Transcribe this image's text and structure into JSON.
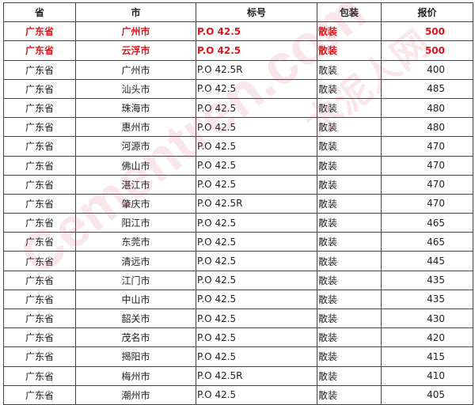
{
  "table": {
    "headers": [
      "省",
      "市",
      "标号",
      "包装",
      "报价"
    ],
    "rows": [
      {
        "cells": [
          "广东省",
          "广州市",
          "P.O 42.5",
          "散装",
          "500"
        ],
        "highlight": true
      },
      {
        "cells": [
          "广东省",
          "云浮市",
          "P.O 42.5",
          "散装",
          "500"
        ],
        "highlight": true
      },
      {
        "cells": [
          "广东省",
          "广州市",
          "P.O 42.5R",
          "散装",
          "400"
        ]
      },
      {
        "cells": [
          "广东省",
          "汕头市",
          "P.O 42.5",
          "散装",
          "485"
        ]
      },
      {
        "cells": [
          "广东省",
          "珠海市",
          "P.O 42.5",
          "散装",
          "480"
        ]
      },
      {
        "cells": [
          "广东省",
          "惠州市",
          "P.O 42.5",
          "散装",
          "480"
        ]
      },
      {
        "cells": [
          "广东省",
          "河源市",
          "P.O 42.5",
          "散装",
          "470"
        ]
      },
      {
        "cells": [
          "广东省",
          "佛山市",
          "P.O 42.5",
          "散装",
          "470"
        ]
      },
      {
        "cells": [
          "广东省",
          "湛江市",
          "P.O 42.5",
          "散装",
          "470"
        ]
      },
      {
        "cells": [
          "广东省",
          "肇庆市",
          "P.O 42.5R",
          "散装",
          "470"
        ]
      },
      {
        "cells": [
          "广东省",
          "阳江市",
          "P.O 42.5",
          "散装",
          "465"
        ]
      },
      {
        "cells": [
          "广东省",
          "东莞市",
          "P.O 42.5",
          "散装",
          "465"
        ]
      },
      {
        "cells": [
          "广东省",
          "清远市",
          "P.O 42.5",
          "散装",
          "445"
        ]
      },
      {
        "cells": [
          "广东省",
          "江门市",
          "P.O 42.5",
          "散装",
          "435"
        ]
      },
      {
        "cells": [
          "广东省",
          "中山市",
          "P.O 42.5",
          "散装",
          "435"
        ]
      },
      {
        "cells": [
          "广东省",
          "韶关市",
          "P.O 42.5",
          "散装",
          "430"
        ]
      },
      {
        "cells": [
          "广东省",
          "茂名市",
          "P.O 42.5",
          "散装",
          "420"
        ]
      },
      {
        "cells": [
          "广东省",
          "揭阳市",
          "P.O 42.5",
          "散装",
          "415"
        ]
      },
      {
        "cells": [
          "广东省",
          "梅州市",
          "P.O 42.5R",
          "散装",
          "410"
        ]
      },
      {
        "cells": [
          "广东省",
          "潮州市",
          "P.O 42.5",
          "散装",
          "405"
        ]
      }
    ],
    "highlight_color": "#e0161c"
  },
  "watermark": {
    "text": "Cementren.com",
    "text_cn": "水泥人网"
  }
}
